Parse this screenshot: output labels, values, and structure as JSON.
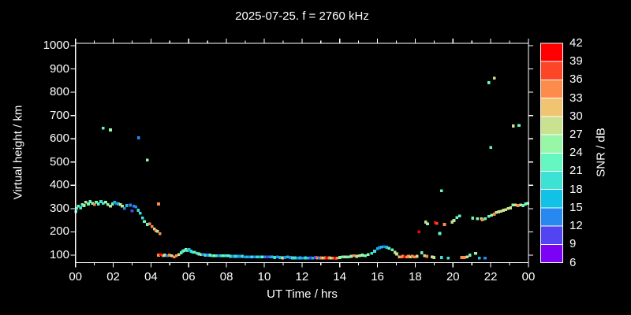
{
  "title": "2025-07-25. f = 2760 kHz",
  "axes": {
    "x_label": "UT Time / hrs",
    "y_label": "Virtual height / km",
    "x_tick_labels": [
      "00",
      "02",
      "04",
      "06",
      "08",
      "10",
      "12",
      "14",
      "16",
      "18",
      "20",
      "22",
      "00"
    ],
    "y_tick_labels": [
      "100",
      "200",
      "300",
      "400",
      "500",
      "600",
      "700",
      "800",
      "900",
      "1000"
    ]
  },
  "colorbar": {
    "title": "SNR / dB",
    "tick_labels": [
      "42",
      "39",
      "36",
      "33",
      "30",
      "27",
      "24",
      "21",
      "18",
      "15",
      "12",
      "9",
      "6"
    ],
    "colors_top_to_bottom": [
      "#ff0000",
      "#fd4527",
      "#fd8b4b",
      "#f0c470",
      "#c8e28f",
      "#97f7a7",
      "#65f7c1",
      "#3ce2d3",
      "#12c1e6",
      "#2788f0",
      "#5244f2",
      "#7c02f6"
    ]
  },
  "chart_data": {
    "type": "scatter",
    "title": "2025-07-25. f = 2760 kHz",
    "xlabel": "UT Time / hrs",
    "ylabel": "Virtual height / km",
    "xlim": [
      0,
      24
    ],
    "ylim": [
      68,
      1010
    ],
    "x_major_step": 2,
    "x_minor_step": 1,
    "y_major_step": 100,
    "grid": false,
    "snr_bins": {
      "min": 6,
      "max": 42,
      "step": 3
    },
    "marker": "square",
    "points_format": [
      "time_hours",
      "height_km",
      "snr_db"
    ],
    "points": [
      [
        0.02,
        287,
        22
      ],
      [
        0.06,
        300,
        19
      ],
      [
        0.15,
        310,
        22
      ],
      [
        0.27,
        303,
        19
      ],
      [
        0.36,
        318,
        22
      ],
      [
        0.45,
        313,
        25
      ],
      [
        0.55,
        327,
        28
      ],
      [
        0.68,
        320,
        22
      ],
      [
        0.78,
        330,
        22
      ],
      [
        0.9,
        323,
        25
      ],
      [
        1.0,
        317,
        34
      ],
      [
        1.1,
        327,
        22
      ],
      [
        1.22,
        320,
        22
      ],
      [
        1.35,
        330,
        19
      ],
      [
        1.47,
        323,
        19
      ],
      [
        1.6,
        327,
        25
      ],
      [
        1.72,
        317,
        25
      ],
      [
        1.85,
        310,
        28
      ],
      [
        1.97,
        320,
        22
      ],
      [
        2.07,
        327,
        16
      ],
      [
        2.18,
        323,
        13
      ],
      [
        2.28,
        320,
        16
      ],
      [
        2.38,
        317,
        28
      ],
      [
        2.48,
        310,
        28
      ],
      [
        2.6,
        300,
        13
      ],
      [
        2.72,
        313,
        16
      ],
      [
        2.9,
        315,
        13
      ],
      [
        3.0,
        290,
        10
      ],
      [
        3.1,
        310,
        13
      ],
      [
        3.2,
        307,
        13
      ],
      [
        3.32,
        293,
        19
      ],
      [
        3.43,
        280,
        19
      ],
      [
        3.55,
        260,
        19
      ],
      [
        3.65,
        245,
        22
      ],
      [
        3.8,
        232,
        22
      ],
      [
        3.93,
        235,
        34
      ],
      [
        4.05,
        222,
        34
      ],
      [
        4.18,
        212,
        28
      ],
      [
        4.26,
        205,
        34
      ],
      [
        4.35,
        202,
        28
      ],
      [
        4.47,
        192,
        34
      ],
      [
        1.47,
        645,
        22
      ],
      [
        1.85,
        638,
        25
      ],
      [
        3.35,
        604,
        13
      ],
      [
        3.8,
        509,
        25
      ],
      [
        4.4,
        320,
        34
      ],
      [
        4.4,
        100,
        34
      ],
      [
        4.51,
        103,
        40
      ],
      [
        4.64,
        97,
        34
      ],
      [
        4.72,
        100,
        28
      ],
      [
        4.85,
        97,
        13
      ],
      [
        4.97,
        100,
        34
      ],
      [
        5.1,
        97,
        28
      ],
      [
        5.22,
        93,
        34
      ],
      [
        5.35,
        97,
        34
      ],
      [
        5.47,
        103,
        28
      ],
      [
        5.6,
        110,
        22
      ],
      [
        5.68,
        117,
        19
      ],
      [
        5.76,
        120,
        22
      ],
      [
        5.85,
        124,
        25
      ],
      [
        5.93,
        120,
        19
      ],
      [
        6.02,
        124,
        16
      ],
      [
        6.12,
        117,
        19
      ],
      [
        6.22,
        113,
        19
      ],
      [
        6.3,
        113,
        22
      ],
      [
        6.43,
        107,
        19
      ],
      [
        6.55,
        105,
        22
      ],
      [
        6.67,
        103,
        28
      ],
      [
        6.76,
        103,
        13
      ],
      [
        6.88,
        100,
        19
      ],
      [
        7.0,
        100,
        13
      ],
      [
        7.12,
        100,
        22
      ],
      [
        7.24,
        98,
        19
      ],
      [
        7.36,
        98,
        25
      ],
      [
        7.48,
        98,
        19
      ],
      [
        7.6,
        98,
        13
      ],
      [
        7.72,
        97,
        19
      ],
      [
        7.84,
        97,
        22
      ],
      [
        7.96,
        97,
        19
      ],
      [
        8.1,
        97,
        22
      ],
      [
        8.22,
        95,
        19
      ],
      [
        8.35,
        95,
        13
      ],
      [
        8.47,
        95,
        19
      ],
      [
        8.6,
        95,
        16
      ],
      [
        8.72,
        95,
        13
      ],
      [
        8.84,
        95,
        19
      ],
      [
        8.96,
        93,
        13
      ],
      [
        9.1,
        93,
        16
      ],
      [
        9.22,
        93,
        13
      ],
      [
        9.35,
        93,
        19
      ],
      [
        9.5,
        93,
        13
      ],
      [
        9.64,
        92,
        19
      ],
      [
        9.76,
        92,
        16
      ],
      [
        9.9,
        92,
        22
      ],
      [
        10.03,
        92,
        13
      ],
      [
        10.16,
        93,
        10
      ],
      [
        10.3,
        92,
        13
      ],
      [
        10.43,
        92,
        16
      ],
      [
        10.56,
        90,
        19
      ],
      [
        10.7,
        92,
        13
      ],
      [
        10.83,
        90,
        16
      ],
      [
        10.97,
        88,
        28
      ],
      [
        11.1,
        90,
        13
      ],
      [
        11.24,
        92,
        16
      ],
      [
        11.37,
        90,
        13
      ],
      [
        11.5,
        88,
        19
      ],
      [
        11.64,
        88,
        19
      ],
      [
        11.77,
        87,
        13
      ],
      [
        11.9,
        88,
        16
      ],
      [
        12.04,
        87,
        13
      ],
      [
        12.18,
        88,
        19
      ],
      [
        12.32,
        87,
        16
      ],
      [
        12.45,
        88,
        10
      ],
      [
        12.58,
        87,
        16
      ],
      [
        12.7,
        90,
        10
      ],
      [
        12.82,
        88,
        34
      ],
      [
        12.92,
        87,
        13
      ],
      [
        13.02,
        88,
        34
      ],
      [
        13.12,
        87,
        28
      ],
      [
        13.22,
        88,
        34
      ],
      [
        13.32,
        87,
        40
      ],
      [
        13.45,
        88,
        34
      ],
      [
        13.55,
        87,
        28
      ],
      [
        13.65,
        87,
        34
      ],
      [
        13.75,
        85,
        40
      ],
      [
        13.85,
        87,
        34
      ],
      [
        14.0,
        90,
        25
      ],
      [
        14.15,
        92,
        22
      ],
      [
        14.3,
        93,
        28
      ],
      [
        14.45,
        92,
        22
      ],
      [
        14.6,
        95,
        28
      ],
      [
        14.75,
        97,
        34
      ],
      [
        14.9,
        95,
        25
      ],
      [
        15.05,
        97,
        28
      ],
      [
        15.2,
        100,
        25
      ],
      [
        15.35,
        98,
        22
      ],
      [
        15.5,
        102,
        25
      ],
      [
        15.7,
        107,
        19
      ],
      [
        15.85,
        117,
        19
      ],
      [
        16.0,
        128,
        16
      ],
      [
        16.1,
        132,
        13
      ],
      [
        16.22,
        135,
        16
      ],
      [
        16.35,
        136,
        13
      ],
      [
        16.48,
        134,
        16
      ],
      [
        16.62,
        130,
        22
      ],
      [
        16.78,
        123,
        22
      ],
      [
        16.92,
        112,
        28
      ],
      [
        17.02,
        105,
        28
      ],
      [
        17.15,
        93,
        31
      ],
      [
        17.25,
        92,
        34
      ],
      [
        17.35,
        95,
        34
      ],
      [
        17.45,
        92,
        40
      ],
      [
        17.55,
        93,
        34
      ],
      [
        17.65,
        95,
        34
      ],
      [
        17.75,
        92,
        28
      ],
      [
        17.85,
        95,
        34
      ],
      [
        17.95,
        93,
        34
      ],
      [
        18.1,
        95,
        28
      ],
      [
        18.35,
        110,
        22
      ],
      [
        18.5,
        97,
        28
      ],
      [
        18.62,
        95,
        34
      ],
      [
        18.9,
        93,
        28
      ],
      [
        19.0,
        90,
        28
      ],
      [
        19.4,
        90,
        19
      ],
      [
        19.75,
        87,
        19
      ],
      [
        20.45,
        90,
        34
      ],
      [
        20.6,
        90,
        34
      ],
      [
        20.75,
        93,
        28
      ],
      [
        20.9,
        100,
        22
      ],
      [
        21.2,
        107,
        25
      ],
      [
        21.4,
        87,
        16
      ],
      [
        21.7,
        87,
        13
      ],
      [
        18.2,
        200,
        40
      ],
      [
        18.55,
        242,
        28
      ],
      [
        18.65,
        235,
        25
      ],
      [
        19.05,
        239,
        40
      ],
      [
        19.15,
        236,
        37
      ],
      [
        19.3,
        193,
        22
      ],
      [
        19.4,
        377,
        22
      ],
      [
        19.55,
        232,
        34
      ],
      [
        19.95,
        242,
        28
      ],
      [
        20.05,
        249,
        28
      ],
      [
        20.2,
        262,
        22
      ],
      [
        20.35,
        269,
        22
      ],
      [
        21.05,
        259,
        22
      ],
      [
        21.3,
        256,
        25
      ],
      [
        21.5,
        256,
        28
      ],
      [
        21.57,
        252,
        34
      ],
      [
        21.7,
        256,
        22
      ],
      [
        21.9,
        266,
        22
      ],
      [
        22.05,
        272,
        25
      ],
      [
        22.2,
        276,
        34
      ],
      [
        22.3,
        283,
        28
      ],
      [
        22.42,
        286,
        28
      ],
      [
        22.55,
        289,
        28
      ],
      [
        22.67,
        293,
        28
      ],
      [
        22.8,
        296,
        28
      ],
      [
        22.92,
        300,
        28
      ],
      [
        23.05,
        303,
        28
      ],
      [
        23.17,
        316,
        25
      ],
      [
        23.3,
        316,
        28
      ],
      [
        23.45,
        313,
        34
      ],
      [
        23.6,
        316,
        28
      ],
      [
        23.72,
        313,
        22
      ],
      [
        23.85,
        320,
        22
      ],
      [
        23.97,
        323,
        25
      ],
      [
        21.9,
        841,
        22
      ],
      [
        22.2,
        861,
        28
      ],
      [
        22.0,
        563,
        22
      ],
      [
        23.2,
        655,
        28
      ],
      [
        23.5,
        658,
        22
      ]
    ]
  }
}
